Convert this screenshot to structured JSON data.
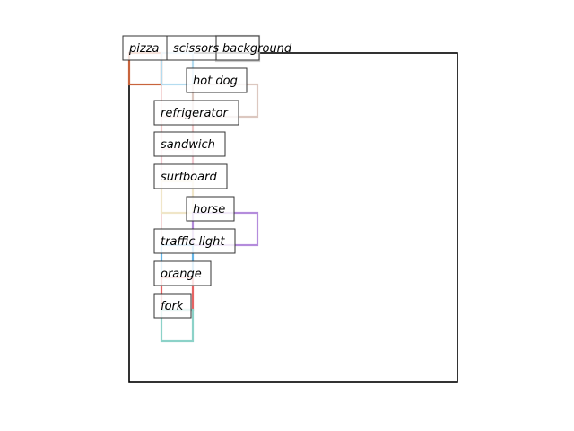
{
  "chart_data": {
    "type": "diagram",
    "title": "",
    "axes_visible": false,
    "labels": [
      "background",
      "pizza",
      "scissors",
      "hot dog",
      "refrigerator",
      "sandwich",
      "surfboard",
      "horse",
      "traffic light",
      "orange",
      "fork"
    ],
    "boxes": [
      {
        "label": "background",
        "color": "#cccccc"
      },
      {
        "label": "pizza",
        "color": "#c8643c"
      },
      {
        "label": "scissors",
        "color": "#b4dcf0"
      },
      {
        "label": "hot dog",
        "color": "#dcc8c0"
      },
      {
        "label": "refrigerator",
        "color": "#f0c8c8"
      },
      {
        "label": "sandwich",
        "color": "#f0c8d0"
      },
      {
        "label": "surfboard",
        "color": "#f0e6c8"
      },
      {
        "label": "horse",
        "color": "#b48cdc"
      },
      {
        "label": "traffic light",
        "color": "#64b4e6"
      },
      {
        "label": "orange",
        "color": "#e66464"
      },
      {
        "label": "fork",
        "color": "#8cd2c8"
      }
    ],
    "frame_color": "#000000"
  }
}
